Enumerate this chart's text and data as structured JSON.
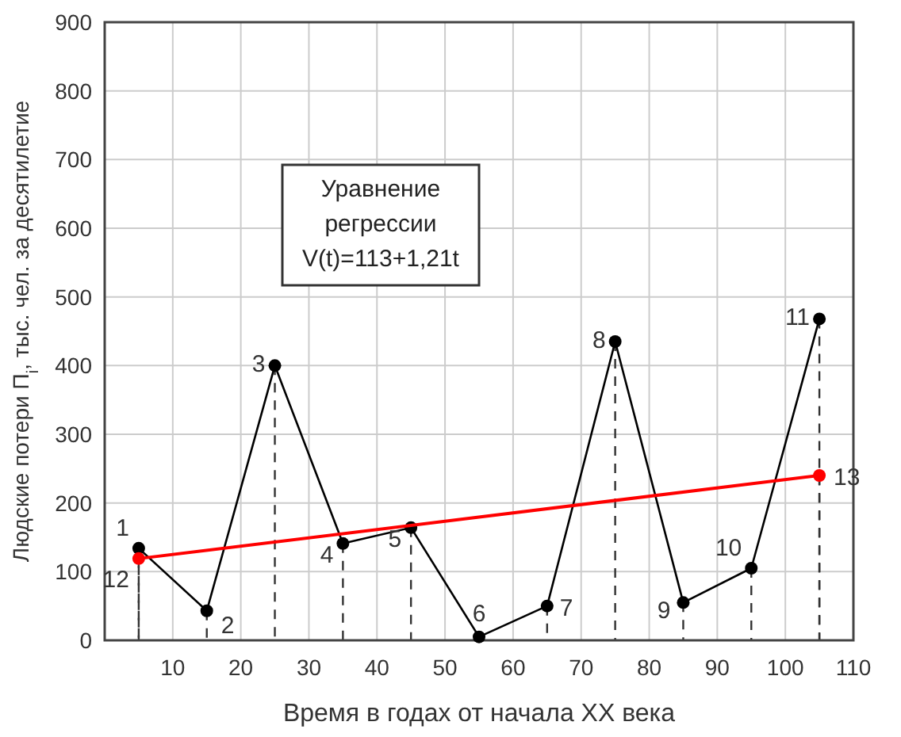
{
  "chart_data": {
    "type": "line",
    "xlabel": "Время в годах от начала XX века",
    "ylabel": "Людские потери П$_{i}$, тыс. чел. за десятилетие",
    "xlim": [
      0,
      110
    ],
    "xticks": [
      10,
      20,
      30,
      40,
      50,
      60,
      70,
      80,
      90,
      100,
      110
    ],
    "ylim": [
      0,
      900
    ],
    "yticks": [
      0,
      100,
      200,
      300,
      400,
      500,
      600,
      700,
      800,
      900
    ],
    "grid": true,
    "marker": "circle",
    "series": [
      {
        "color": "#000000",
        "x": [
          5,
          15,
          25,
          35,
          45,
          55,
          65,
          75,
          85,
          95,
          105
        ],
        "values": [
          134,
          43,
          400,
          141,
          164,
          5,
          50,
          435,
          55,
          105,
          468
        ]
      },
      {
        "type": "line",
        "color": "#ff0000",
        "x": [
          5,
          105
        ],
        "values": [
          119,
          240
        ]
      }
    ],
    "annotations": [
      {
        "text": "1",
        "x": 5,
        "y": 134
      },
      {
        "text": "2",
        "x": 15,
        "y": 43
      },
      {
        "text": "3",
        "x": 25,
        "y": 400
      },
      {
        "text": "4",
        "x": 35,
        "y": 141
      },
      {
        "text": "5",
        "x": 45,
        "y": 164
      },
      {
        "text": "6",
        "x": 55,
        "y": 5
      },
      {
        "text": "7",
        "x": 65,
        "y": 50
      },
      {
        "text": "8",
        "x": 75,
        "y": 435
      },
      {
        "text": "9",
        "x": 85,
        "y": 55
      },
      {
        "text": "10",
        "x": 95,
        "y": 105
      },
      {
        "text": "11",
        "x": 105,
        "y": 468
      },
      {
        "text": "12",
        "x": 5,
        "y": 119
      },
      {
        "text": "13",
        "x": 105,
        "y": 240
      },
      "Уравнение\nрегрессии\nV(t)=113+1,21t"
    ]
  }
}
